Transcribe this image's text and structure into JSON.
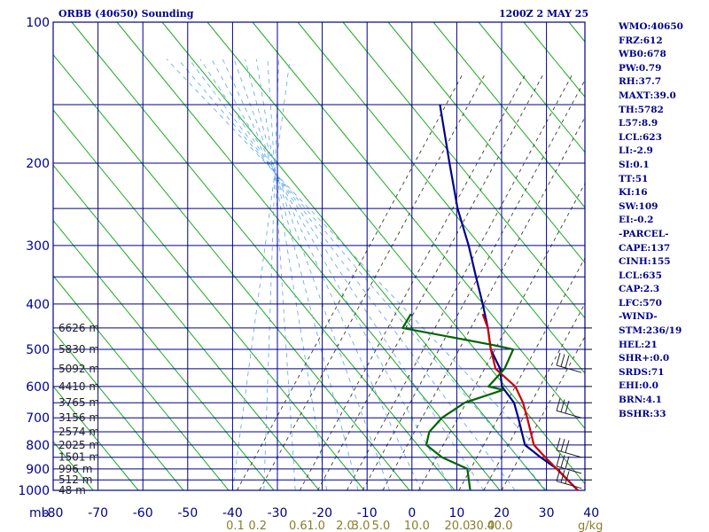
{
  "header": {
    "title": "ORBB (40650) Sounding",
    "time": "1200Z  2 MAY 25"
  },
  "stats": [
    "WMO:40650",
    "FRZ:612",
    "WB0:678",
    "PW:0.79",
    "RH:37.7",
    "MAXT:39.0",
    "TH:5782",
    "L57:8.9",
    "LCL:623",
    "LI:-2.9",
    "SI:0.1",
    "TT:51",
    "KI:16",
    "SW:109",
    "EI:-0.2",
    "-PARCEL-",
    "CAPE:137",
    "CINH:155",
    "LCL:635",
    "CAP:2.3",
    "LFC:570",
    "-WIND-",
    "STM:236/19",
    "HEL:21",
    "SHR+:0.0",
    "SRDS:71",
    "EHI:0.0",
    "BRN:4.1",
    "BSHR:33"
  ],
  "chart_data": {
    "type": "line",
    "subtype": "skew-t log-p sounding",
    "pressure_ticks": [
      100,
      200,
      300,
      400,
      500,
      600,
      700,
      800,
      900,
      1000
    ],
    "pressure_axis_label": "mb",
    "temperature_ticks": [
      -80,
      -70,
      -60,
      -50,
      -40,
      -30,
      -20,
      -10,
      0,
      10,
      20,
      30,
      40
    ],
    "mixing_ratio_label": "g/kg",
    "mixing_ratio_ticks": [
      {
        "label": "0.1",
        "t": -39
      },
      {
        "label": "0.2",
        "t": -34
      },
      {
        "label": "0.6",
        "t": -25
      },
      {
        "label": "1.0",
        "t": -21
      },
      {
        "label": "2.0",
        "t": -14.5
      },
      {
        "label": "3.0",
        "t": -11
      },
      {
        "label": "5.0",
        "t": -6.5
      },
      {
        "label": "10.0",
        "t": 1.5
      },
      {
        "label": "20.0",
        "t": 10.5
      },
      {
        "label": "30.0",
        "t": 16
      },
      {
        "label": "40.0",
        "t": 20
      }
    ],
    "heights": [
      {
        "label": "6626 m",
        "p": 450
      },
      {
        "label": "5830 m",
        "p": 500
      },
      {
        "label": "5092 m",
        "p": 550
      },
      {
        "label": "4410 m",
        "p": 600
      },
      {
        "label": "3765 m",
        "p": 650
      },
      {
        "label": "3156 m",
        "p": 700
      },
      {
        "label": "2574 m",
        "p": 750
      },
      {
        "label": "2025 m",
        "p": 800
      },
      {
        "label": "1501 m",
        "p": 850
      },
      {
        "label": "996 m",
        "p": 900
      },
      {
        "label": "512 m",
        "p": 950
      },
      {
        "label": "48 m",
        "p": 1000
      }
    ],
    "series": [
      {
        "color": "#00008b",
        "points": [
          [
            1000,
            37
          ],
          [
            900,
            28
          ],
          [
            850,
            22
          ],
          [
            800,
            16
          ],
          [
            700,
            9
          ],
          [
            650,
            5
          ],
          [
            600,
            -1
          ],
          [
            550,
            -5
          ],
          [
            500,
            -11
          ],
          [
            450,
            -16
          ],
          [
            400,
            -22
          ],
          [
            350,
            -29
          ],
          [
            300,
            -37
          ],
          [
            250,
            -47
          ],
          [
            200,
            -58
          ],
          [
            150,
            -72
          ]
        ]
      },
      {
        "color": "#cc0000",
        "points": [
          [
            1000,
            37
          ],
          [
            850,
            23
          ],
          [
            800,
            18
          ],
          [
            700,
            11
          ],
          [
            650,
            7
          ],
          [
            600,
            2
          ],
          [
            550,
            -6
          ],
          [
            500,
            -11
          ],
          [
            450,
            -16
          ],
          [
            420,
            -20
          ]
        ]
      },
      {
        "color": "#006400",
        "points": [
          [
            1000,
            13
          ],
          [
            900,
            8
          ],
          [
            850,
            0
          ],
          [
            800,
            -6
          ],
          [
            750,
            -8
          ],
          [
            700,
            -8
          ],
          [
            650,
            -6
          ],
          [
            610,
            0
          ],
          [
            600,
            -4
          ],
          [
            550,
            -4
          ],
          [
            500,
            -6
          ],
          [
            490,
            -11
          ],
          [
            450,
            -35
          ],
          [
            420,
            -36
          ]
        ]
      }
    ],
    "wind_barbs": [
      {
        "p": 560
      },
      {
        "p": 700
      },
      {
        "p": 850
      },
      {
        "p": 920
      },
      {
        "p": 990
      }
    ],
    "grid": true
  }
}
